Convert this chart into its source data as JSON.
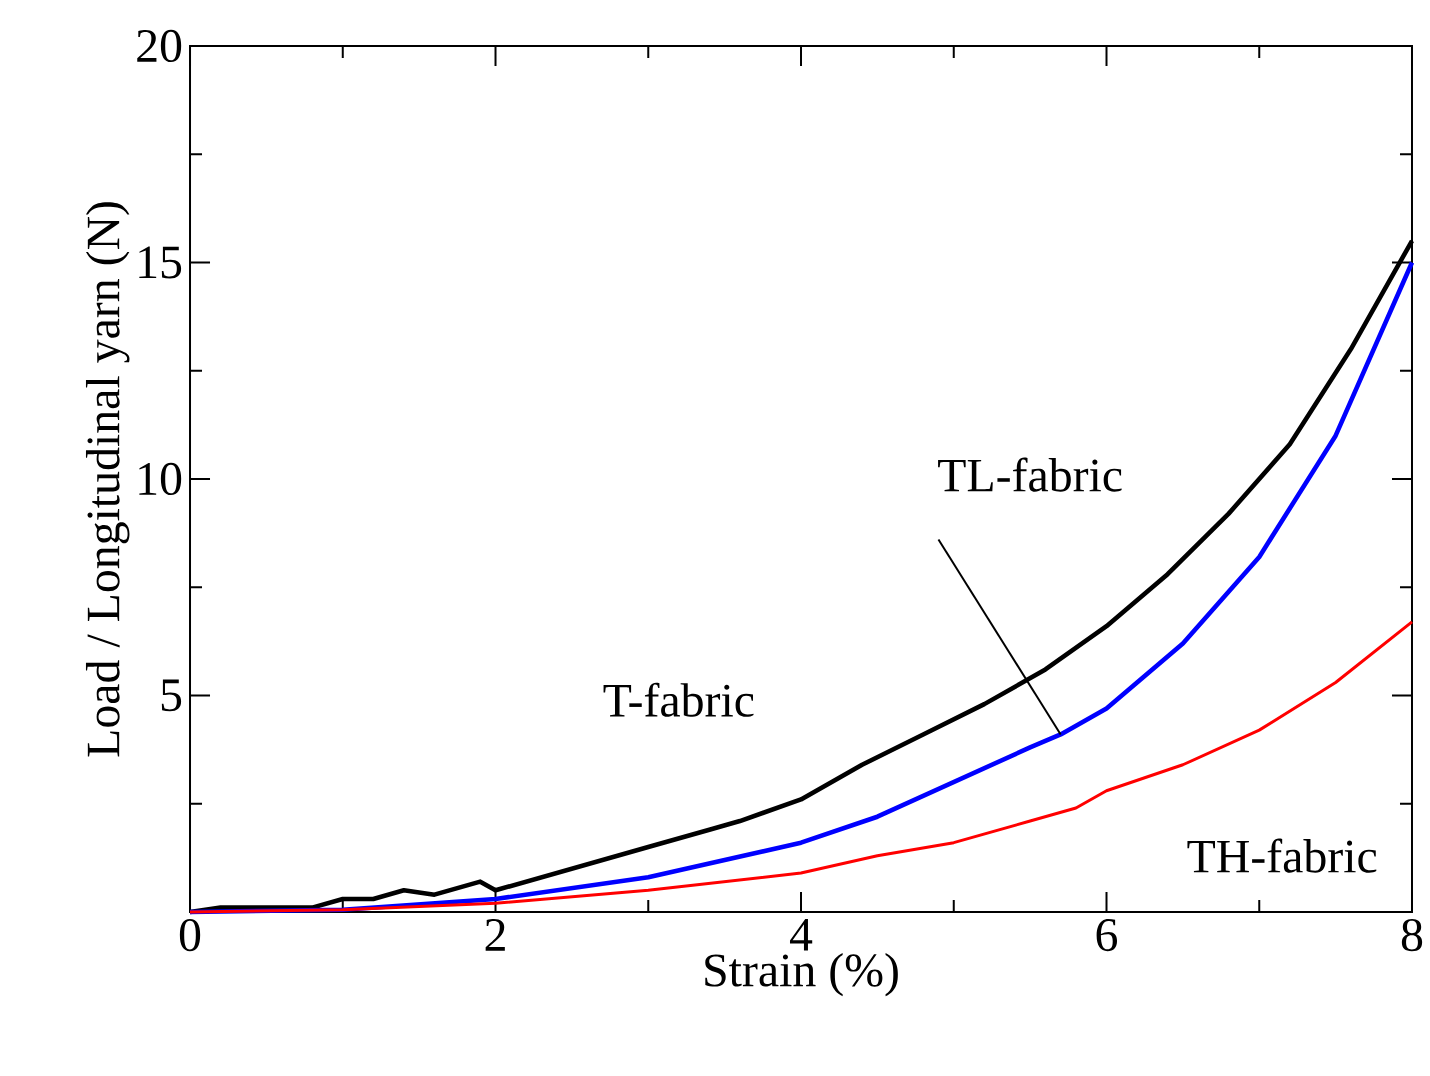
{
  "chart_data": {
    "type": "line",
    "xlabel": "Strain (%)",
    "ylabel": "Load / Longitudinal yarn (N)",
    "xlim": [
      0,
      8
    ],
    "ylim": [
      0,
      20
    ],
    "xticks": [
      0,
      2,
      4,
      6,
      8
    ],
    "yticks": [
      {
        "value": 0,
        "label": null
      },
      5,
      10,
      15,
      20
    ],
    "annotations": [
      {
        "text": "T-fabric",
        "x": 3.6,
        "y": 2.1
      },
      {
        "text": "TL-fabric",
        "x": 5.7,
        "y": 4.1
      },
      {
        "text": "TH-fabric",
        "x": 7.0,
        "y": 4.2
      }
    ],
    "grid": false,
    "marker": "none",
    "line_style": "solid",
    "series": [
      {
        "color": "#000000",
        "x": [
          0,
          0.2,
          0.8,
          1.0,
          1.2,
          1.4,
          1.6,
          1.9,
          2.0,
          2.5,
          3.0,
          3.4,
          3.6,
          4.0,
          4.4,
          4.8,
          5.2,
          5.6,
          6.0,
          6.4,
          6.8,
          7.2,
          7.6,
          8.0
        ],
        "values": [
          0,
          0.1,
          0.1,
          0.3,
          0.3,
          0.5,
          0.4,
          0.7,
          0.5,
          1.0,
          1.5,
          1.9,
          2.1,
          2.6,
          3.4,
          4.1,
          4.8,
          5.6,
          6.6,
          7.8,
          9.2,
          10.8,
          13.0,
          15.5
        ]
      },
      {
        "color": "#0000ff",
        "x": [
          0,
          1,
          2,
          3,
          4,
          4.5,
          5,
          5.5,
          5.7,
          6,
          6.5,
          7,
          7.5,
          8
        ],
        "values": [
          0,
          0.05,
          0.3,
          0.8,
          1.6,
          2.2,
          3.0,
          3.8,
          4.1,
          4.7,
          6.2,
          8.2,
          11.0,
          15.0
        ]
      },
      {
        "color": "#ff0000",
        "x": [
          0,
          1,
          2,
          3,
          4,
          4.5,
          5,
          5.5,
          5.8,
          6,
          6.5,
          7,
          7.5,
          8
        ],
        "values": [
          0,
          0.05,
          0.2,
          0.5,
          0.9,
          1.3,
          1.6,
          2.1,
          2.4,
          2.8,
          3.4,
          4.2,
          5.3,
          6.7
        ]
      }
    ]
  }
}
